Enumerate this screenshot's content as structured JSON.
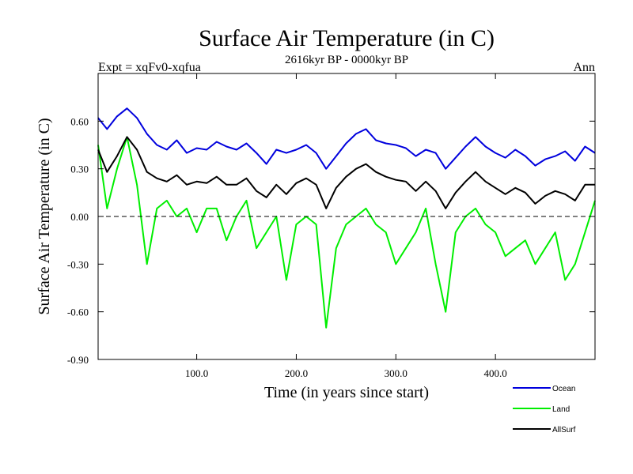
{
  "chart_data": {
    "type": "line",
    "title": "Surface Air Temperature (in C)",
    "subtitle": "2616kyr BP - 0000kyr BP",
    "left_label": "Expt = xqFv0-xqfua",
    "right_label": "Ann",
    "xlabel": "Time (in years since start)",
    "ylabel": "Surface Air Temperature (in C)",
    "xlim": [
      1,
      500
    ],
    "ylim": [
      -0.9,
      0.9
    ],
    "x_ticks": [
      100,
      200,
      300,
      400
    ],
    "x_tick_labels": [
      "100.0",
      "200.0",
      "300.0",
      "400.0"
    ],
    "y_ticks": [
      -0.9,
      -0.6,
      -0.3,
      0.0,
      0.3,
      0.6
    ],
    "y_tick_labels": [
      "-0.90",
      "-0.60",
      "-0.30",
      "0.00",
      "0.30",
      "0.60"
    ],
    "reference_line": 0.0,
    "legend_position": "below-right",
    "series": [
      {
        "name": "Ocean",
        "color": "#0000dd",
        "x": [
          1,
          10,
          20,
          30,
          40,
          50,
          60,
          70,
          80,
          90,
          100,
          110,
          120,
          130,
          140,
          150,
          160,
          170,
          180,
          190,
          200,
          210,
          220,
          230,
          240,
          250,
          260,
          270,
          280,
          290,
          300,
          310,
          320,
          330,
          340,
          350,
          360,
          370,
          380,
          390,
          400,
          410,
          420,
          430,
          440,
          450,
          460,
          470,
          480,
          490,
          500
        ],
        "values": [
          0.62,
          0.55,
          0.63,
          0.68,
          0.62,
          0.52,
          0.45,
          0.42,
          0.48,
          0.4,
          0.43,
          0.42,
          0.47,
          0.44,
          0.42,
          0.46,
          0.4,
          0.33,
          0.42,
          0.4,
          0.42,
          0.45,
          0.4,
          0.3,
          0.38,
          0.46,
          0.52,
          0.55,
          0.48,
          0.46,
          0.45,
          0.43,
          0.38,
          0.42,
          0.4,
          0.3,
          0.37,
          0.44,
          0.5,
          0.44,
          0.4,
          0.37,
          0.42,
          0.38,
          0.32,
          0.36,
          0.38,
          0.41,
          0.35,
          0.44,
          0.4
        ]
      },
      {
        "name": "Land",
        "color": "#00ee00",
        "x": [
          1,
          10,
          20,
          30,
          40,
          50,
          60,
          70,
          80,
          90,
          100,
          110,
          120,
          130,
          140,
          150,
          160,
          170,
          180,
          190,
          200,
          210,
          220,
          230,
          240,
          250,
          260,
          270,
          280,
          290,
          300,
          310,
          320,
          330,
          340,
          350,
          360,
          370,
          380,
          390,
          400,
          410,
          420,
          430,
          440,
          450,
          460,
          470,
          480,
          490,
          500
        ],
        "values": [
          0.45,
          0.05,
          0.3,
          0.5,
          0.2,
          -0.3,
          0.05,
          0.1,
          0.0,
          0.05,
          -0.1,
          0.05,
          0.05,
          -0.15,
          0.0,
          0.1,
          -0.2,
          -0.1,
          0.0,
          -0.4,
          -0.05,
          0.0,
          -0.05,
          -0.7,
          -0.2,
          -0.05,
          0.0,
          0.05,
          -0.05,
          -0.1,
          -0.3,
          -0.2,
          -0.1,
          0.05,
          -0.3,
          -0.6,
          -0.1,
          0.0,
          0.05,
          -0.05,
          -0.1,
          -0.25,
          -0.2,
          -0.15,
          -0.3,
          -0.2,
          -0.1,
          -0.4,
          -0.3,
          -0.1,
          0.1
        ]
      },
      {
        "name": "AllSurf",
        "color": "#000000",
        "x": [
          1,
          10,
          20,
          30,
          40,
          50,
          60,
          70,
          80,
          90,
          100,
          110,
          120,
          130,
          140,
          150,
          160,
          170,
          180,
          190,
          200,
          210,
          220,
          230,
          240,
          250,
          260,
          270,
          280,
          290,
          300,
          310,
          320,
          330,
          340,
          350,
          360,
          370,
          380,
          390,
          400,
          410,
          420,
          430,
          440,
          450,
          460,
          470,
          480,
          490,
          500
        ],
        "values": [
          0.42,
          0.28,
          0.38,
          0.5,
          0.42,
          0.28,
          0.24,
          0.22,
          0.26,
          0.2,
          0.22,
          0.21,
          0.25,
          0.2,
          0.2,
          0.24,
          0.16,
          0.12,
          0.2,
          0.14,
          0.21,
          0.24,
          0.2,
          0.05,
          0.18,
          0.25,
          0.3,
          0.33,
          0.28,
          0.25,
          0.23,
          0.22,
          0.16,
          0.22,
          0.16,
          0.05,
          0.15,
          0.22,
          0.28,
          0.22,
          0.18,
          0.14,
          0.18,
          0.15,
          0.08,
          0.13,
          0.16,
          0.14,
          0.1,
          0.2,
          0.2
        ]
      }
    ]
  }
}
